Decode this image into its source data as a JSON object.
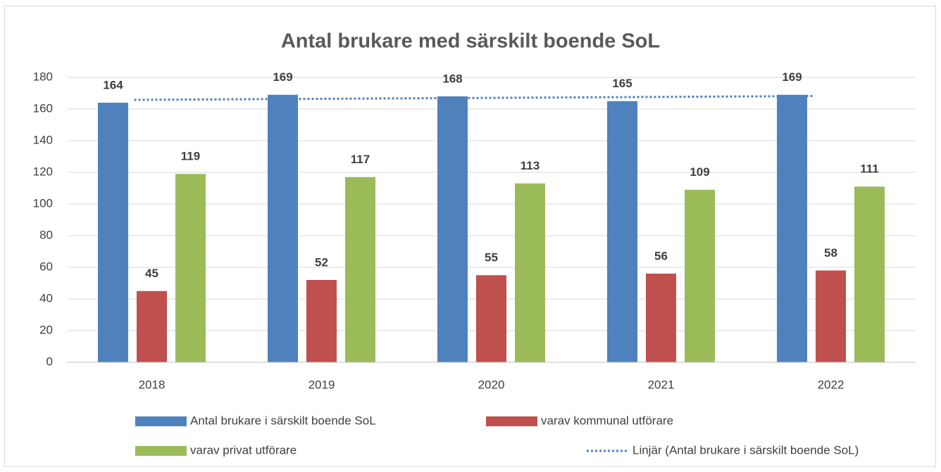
{
  "chart_data": {
    "type": "bar",
    "title": "Antal brukare med särskilt boende SoL",
    "categories": [
      "2018",
      "2019",
      "2020",
      "2021",
      "2022"
    ],
    "series": [
      {
        "name": "Antal brukare i särskilt boende SoL",
        "color": "#4f81bd",
        "values": [
          164,
          169,
          168,
          165,
          169
        ]
      },
      {
        "name": "varav kommunal utförare",
        "color": "#c0504d",
        "values": [
          45,
          52,
          55,
          56,
          58
        ]
      },
      {
        "name": "varav privat utförare",
        "color": "#9bbb59",
        "values": [
          119,
          117,
          113,
          109,
          111
        ]
      }
    ],
    "trendline": {
      "name": "Linjär (Antal brukare i särskilt boende SoL)",
      "color": "#4f81bd"
    },
    "ylim": [
      0,
      180
    ],
    "yticks": [
      0,
      20,
      40,
      60,
      80,
      100,
      120,
      140,
      160,
      180
    ],
    "grid": true
  }
}
